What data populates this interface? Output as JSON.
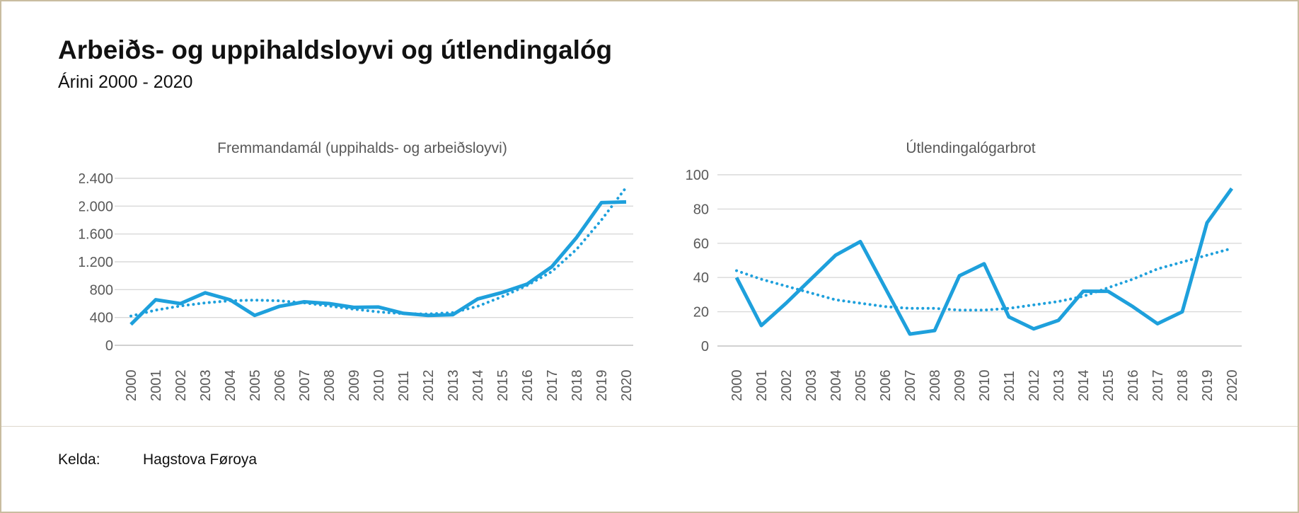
{
  "page": {
    "title": "Arbeiðs- og uppihaldsloyvi og útlendingalóg",
    "subtitle": "Árini 2000 - 2020",
    "source_label": "Kelda:",
    "source_value": "Hagstova Føroya"
  },
  "colors": {
    "line": "#1EA0DC",
    "grid": "#D9D9D9",
    "zero_line": "#C2C2C2",
    "axis_text": "#595959",
    "title_text": "#595959"
  },
  "chart_data": [
    {
      "type": "line",
      "title": "Fremmandamál (uppihalds- og arbeiðsloyvi)",
      "categories": [
        "2000",
        "2001",
        "2002",
        "2003",
        "2004",
        "2005",
        "2006",
        "2007",
        "2008",
        "2009",
        "2010",
        "2011",
        "2012",
        "2013",
        "2014",
        "2015",
        "2016",
        "2017",
        "2018",
        "2019",
        "2020"
      ],
      "series": [
        {
          "line_style": "solid",
          "values": [
            300,
            655,
            600,
            755,
            655,
            430,
            560,
            625,
            600,
            545,
            550,
            460,
            430,
            440,
            665,
            760,
            880,
            1130,
            1550,
            2050,
            2060
          ]
        },
        {
          "line_style": "dotted",
          "values": [
            420,
            505,
            565,
            610,
            640,
            650,
            640,
            610,
            565,
            520,
            480,
            455,
            450,
            470,
            560,
            700,
            860,
            1060,
            1380,
            1800,
            2270
          ]
        }
      ],
      "ylim": [
        0,
        2400
      ],
      "ytick_step": 400,
      "ytick_labels": [
        "0",
        "400",
        "800",
        "1.200",
        "1.600",
        "2.000",
        "2.400"
      ],
      "grid": true,
      "legend": "none"
    },
    {
      "type": "line",
      "title": "Útlendingalógarbrot",
      "categories": [
        "2000",
        "2001",
        "2002",
        "2003",
        "2004",
        "2005",
        "2006",
        "2007",
        "2008",
        "2009",
        "2010",
        "2011",
        "2012",
        "2013",
        "2014",
        "2015",
        "2016",
        "2017",
        "2018",
        "2019",
        "2020"
      ],
      "series": [
        {
          "line_style": "solid",
          "values": [
            40,
            12,
            25,
            39,
            53,
            61,
            34,
            7,
            9,
            41,
            48,
            17,
            10,
            15,
            32,
            32,
            23,
            13,
            20,
            72,
            92
          ]
        },
        {
          "line_style": "dotted",
          "values": [
            44,
            39,
            35,
            31,
            27,
            25,
            23,
            22,
            22,
            21,
            21,
            22,
            24,
            26,
            29,
            34,
            39,
            45,
            49,
            53,
            57
          ]
        }
      ],
      "ylim": [
        0,
        100
      ],
      "ytick_step": 20,
      "ytick_labels": [
        "0",
        "20",
        "40",
        "60",
        "80",
        "100"
      ],
      "grid": true,
      "legend": "none"
    }
  ]
}
